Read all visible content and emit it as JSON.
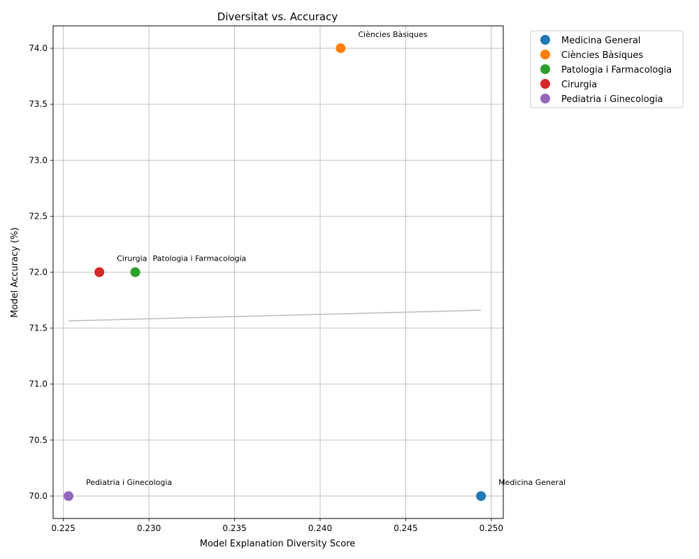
{
  "chart_data": {
    "type": "scatter",
    "title": "Diversitat vs. Accuracy",
    "xlabel": "Model Explanation Diversity Score",
    "ylabel": "Model Accuracy (%)",
    "xlim": [
      0.2244,
      0.2507
    ],
    "ylim": [
      69.8,
      74.2
    ],
    "xticks": [
      "0.225",
      "0.230",
      "0.235",
      "0.240",
      "0.245",
      "0.250"
    ],
    "xtick_values": [
      0.225,
      0.23,
      0.235,
      0.24,
      0.245,
      0.25
    ],
    "yticks": [
      "70.0",
      "70.5",
      "71.0",
      "71.5",
      "72.0",
      "72.5",
      "73.0",
      "73.5",
      "74.0"
    ],
    "ytick_values": [
      70.0,
      70.5,
      71.0,
      71.5,
      72.0,
      72.5,
      73.0,
      73.5,
      74.0
    ],
    "grid": true,
    "legend_position": "outside top-right",
    "series": [
      {
        "name": "Medicina General",
        "x": 0.2494,
        "y": 70.0,
        "color": "#1f77b4"
      },
      {
        "name": "Ciències Bàsiques",
        "x": 0.2412,
        "y": 74.0,
        "color": "#ff7f0e"
      },
      {
        "name": "Patologia i Farmacologia",
        "x": 0.2292,
        "y": 72.0,
        "color": "#2ca02c"
      },
      {
        "name": "Cirurgia",
        "x": 0.2271,
        "y": 72.0,
        "color": "#d62728"
      },
      {
        "name": "Pediatria i Ginecologia",
        "x": 0.2253,
        "y": 70.0,
        "color": "#9467bd"
      }
    ],
    "trendline": {
      "x": [
        0.2253,
        0.2494
      ],
      "y": [
        71.565,
        71.66
      ],
      "color": "#bbbbbb"
    }
  }
}
